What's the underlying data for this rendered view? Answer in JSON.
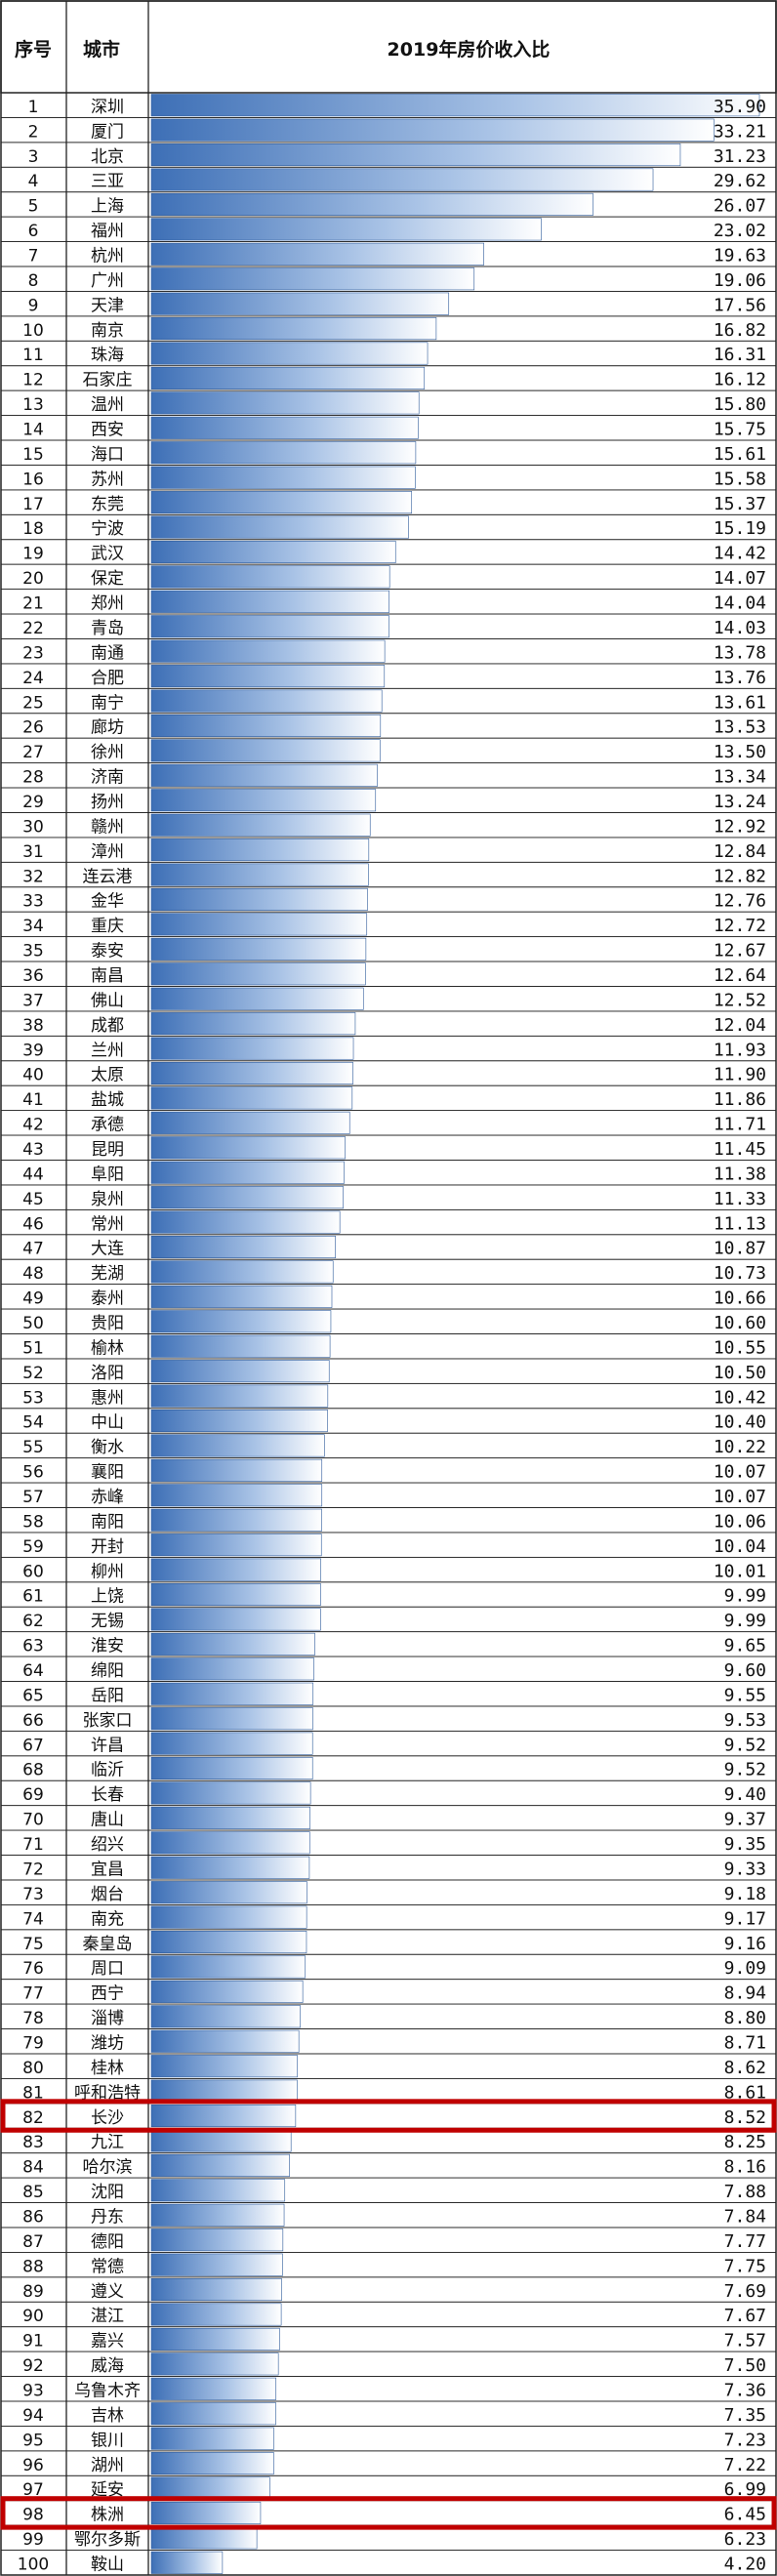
{
  "table": {
    "col_rank": "序号",
    "col_city": "城市",
    "col_value": "2019年房价收入比"
  },
  "colors": {
    "bar_dark": "#3d6fb6",
    "bar_light": "#ffffff",
    "highlight": "#c00000",
    "grid": "#222222"
  },
  "highlighted_ranks": [
    82,
    98
  ],
  "chart_data": {
    "type": "bar",
    "orientation": "horizontal",
    "title": "2019年房价收入比",
    "xlim": [
      0,
      35.9
    ],
    "grid": true,
    "categories": [
      "深圳",
      "厦门",
      "北京",
      "三亚",
      "上海",
      "福州",
      "杭州",
      "广州",
      "天津",
      "南京",
      "珠海",
      "石家庄",
      "温州",
      "西安",
      "海口",
      "苏州",
      "东莞",
      "宁波",
      "武汉",
      "保定",
      "郑州",
      "青岛",
      "南通",
      "合肥",
      "南宁",
      "廊坊",
      "徐州",
      "济南",
      "扬州",
      "赣州",
      "漳州",
      "连云港",
      "金华",
      "重庆",
      "泰安",
      "南昌",
      "佛山",
      "成都",
      "兰州",
      "太原",
      "盐城",
      "承德",
      "昆明",
      "阜阳",
      "泉州",
      "常州",
      "大连",
      "芜湖",
      "泰州",
      "贵阳",
      "榆林",
      "洛阳",
      "惠州",
      "中山",
      "衡水",
      "襄阳",
      "赤峰",
      "南阳",
      "开封",
      "柳州",
      "上饶",
      "无锡",
      "淮安",
      "绵阳",
      "岳阳",
      "张家口",
      "许昌",
      "临沂",
      "长春",
      "唐山",
      "绍兴",
      "宜昌",
      "烟台",
      "南充",
      "秦皇岛",
      "周口",
      "西宁",
      "淄博",
      "潍坊",
      "桂林",
      "呼和浩特",
      "长沙",
      "九江",
      "哈尔滨",
      "沈阳",
      "丹东",
      "德阳",
      "常德",
      "遵义",
      "湛江",
      "嘉兴",
      "威海",
      "乌鲁木齐",
      "吉林",
      "银川",
      "湖州",
      "延安",
      "株洲",
      "鄂尔多斯",
      "鞍山"
    ],
    "values": [
      "35.90",
      "33.21",
      "31.23",
      "29.62",
      "26.07",
      "23.02",
      "19.63",
      "19.06",
      "17.56",
      "16.82",
      "16.31",
      "16.12",
      "15.80",
      "15.75",
      "15.61",
      "15.58",
      "15.37",
      "15.19",
      "14.42",
      "14.07",
      "14.04",
      "14.03",
      "13.78",
      "13.76",
      "13.61",
      "13.53",
      "13.50",
      "13.34",
      "13.24",
      "12.92",
      "12.84",
      "12.82",
      "12.76",
      "12.72",
      "12.67",
      "12.64",
      "12.52",
      "12.04",
      "11.93",
      "11.90",
      "11.86",
      "11.71",
      "11.45",
      "11.38",
      "11.33",
      "11.13",
      "10.87",
      "10.73",
      "10.66",
      "10.60",
      "10.55",
      "10.50",
      "10.42",
      "10.40",
      "10.22",
      "10.07",
      "10.07",
      "10.06",
      "10.04",
      "10.01",
      "9.99",
      "9.99",
      "9.65",
      "9.60",
      "9.55",
      "9.53",
      "9.52",
      "9.52",
      "9.40",
      "9.37",
      "9.35",
      "9.33",
      "9.18",
      "9.17",
      "9.16",
      "9.09",
      "8.94",
      "8.80",
      "8.71",
      "8.62",
      "8.61",
      "8.52",
      "8.25",
      "8.16",
      "7.88",
      "7.84",
      "7.77",
      "7.75",
      "7.69",
      "7.67",
      "7.57",
      "7.50",
      "7.36",
      "7.35",
      "7.23",
      "7.22",
      "6.99",
      "6.45",
      "6.23",
      "4.20"
    ],
    "ranks": [
      1,
      2,
      3,
      4,
      5,
      6,
      7,
      8,
      9,
      10,
      11,
      12,
      13,
      14,
      15,
      16,
      17,
      18,
      19,
      20,
      21,
      22,
      23,
      24,
      25,
      26,
      27,
      28,
      29,
      30,
      31,
      32,
      33,
      34,
      35,
      36,
      37,
      38,
      39,
      40,
      41,
      42,
      43,
      44,
      45,
      46,
      47,
      48,
      49,
      50,
      51,
      52,
      53,
      54,
      55,
      56,
      57,
      58,
      59,
      60,
      61,
      62,
      63,
      64,
      65,
      66,
      67,
      68,
      69,
      70,
      71,
      72,
      73,
      74,
      75,
      76,
      77,
      78,
      79,
      80,
      81,
      82,
      83,
      84,
      85,
      86,
      87,
      88,
      89,
      90,
      91,
      92,
      93,
      94,
      95,
      96,
      97,
      98,
      99,
      100
    ]
  }
}
